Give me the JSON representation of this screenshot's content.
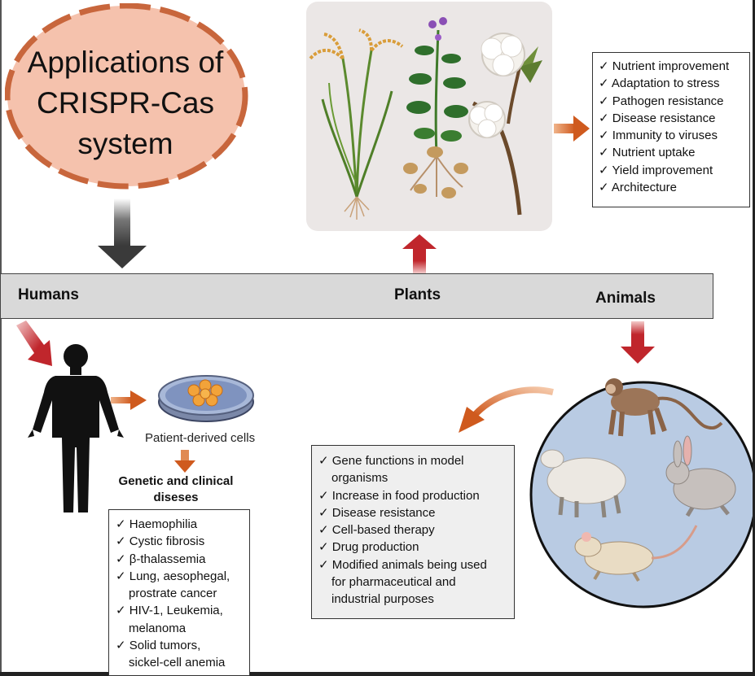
{
  "title": {
    "line1": "Applications of",
    "line2": "CRISPR-Cas",
    "line3": "system"
  },
  "categories": {
    "humans": "Humans",
    "plants": "Plants",
    "animals": "Animals"
  },
  "plants": {
    "benefits": [
      "Nutrient improvement",
      "Adaptation to stress",
      "Pathogen resistance",
      "Disease resistance",
      "Immunity to viruses",
      "Nutrient uptake",
      "Yield improvement",
      "Architecture"
    ]
  },
  "humans": {
    "cells_caption": "Patient-derived cells",
    "diseases_title_1": "Genetic and clinical",
    "diseases_title_2": "diseses",
    "diseases": [
      {
        "l1": "Haemophilia"
      },
      {
        "l1": "Cystic fibrosis"
      },
      {
        "l1": "β-thalassemia"
      },
      {
        "l1": "Lung, aesophegal,",
        "l2": "prostrate cancer"
      },
      {
        "l1": "HIV-1, Leukemia,",
        "l2": "melanoma"
      },
      {
        "l1": "Solid tumors,",
        "l2": "sickel-cell anemia"
      }
    ]
  },
  "animals": {
    "uses": [
      {
        "l1": "Gene functions in model",
        "l2": "organisms"
      },
      {
        "l1": "Increase in food production"
      },
      {
        "l1": "Disease resistance"
      },
      {
        "l1": "Cell-based therapy"
      },
      {
        "l1": "Drug production"
      },
      {
        "l1": "Modified animals being used",
        "l2": "for pharmaceutical and",
        "l3": "industrial purposes"
      }
    ]
  },
  "colors": {
    "ellipse_fill": "#f5c2ad",
    "ellipse_dash": "#c8663c",
    "arrow_red": "#c0262c",
    "arrow_orange": "#cf5a1e",
    "arrow_dark": "#3a3a3a",
    "animal_circle": "#b9cbe3",
    "bar": "#d9d9d9"
  },
  "icons": {
    "check": "✓"
  }
}
